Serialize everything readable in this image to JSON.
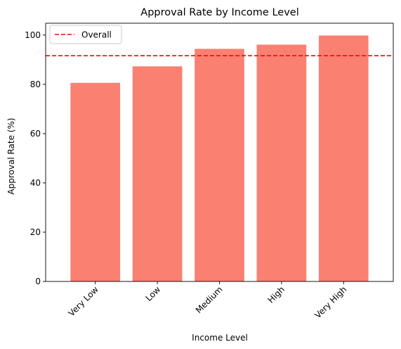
{
  "chart_data": {
    "type": "bar",
    "title": "Approval Rate by Income Level",
    "xlabel": "Income Level",
    "ylabel": "Approval Rate (%)",
    "categories": [
      "Very Low",
      "Low",
      "Medium",
      "High",
      "Very High"
    ],
    "values": [
      80.6,
      87.3,
      94.4,
      96.1,
      99.8
    ],
    "ylim": [
      0,
      104.8
    ],
    "yticks": [
      0,
      20,
      40,
      60,
      80,
      100
    ],
    "bar_color": "#FA8072",
    "reference_line": {
      "label": "Overall",
      "value": 91.6,
      "color": "#FF0000",
      "style": "dashed"
    },
    "legend": {
      "position": "top-left",
      "entries": [
        "Overall"
      ]
    },
    "grid": false
  }
}
